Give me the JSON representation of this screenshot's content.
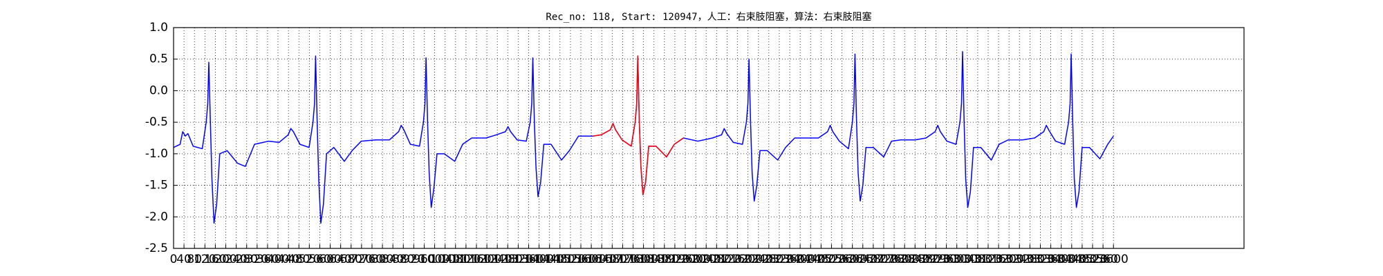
{
  "chart_data": {
    "type": "line",
    "title": "Rec_no: 118, Start: 120947，人工：右束肢阻塞，算法：右束肢阻塞",
    "xlim": [
      0,
      4100
    ],
    "ylim": [
      -2.5,
      1.0
    ],
    "yticks": [
      {
        "value": 1.0,
        "label": "1.0"
      },
      0.5,
      {
        "value": 0.0,
        "label": "0.0"
      },
      -0.5,
      {
        "value": -1.0,
        "label": "-1.0"
      },
      -1.5,
      {
        "value": -2.0,
        "label": "-2.0"
      },
      -2.5
    ],
    "xticks": [
      0,
      40,
      80,
      120,
      160,
      200,
      240,
      280,
      320,
      360,
      400,
      440,
      480,
      520,
      560,
      600,
      640,
      680,
      720,
      760,
      800,
      840,
      880,
      920,
      960,
      1000,
      1040,
      1080,
      1120,
      1160,
      1200,
      1240,
      1280,
      1320,
      1360,
      1400,
      1440,
      1480,
      1520,
      1560,
      1600,
      1640,
      1680,
      1720,
      1760,
      1800,
      1840,
      1880,
      1920,
      1960,
      2000,
      2040,
      2080,
      2120,
      2160,
      2200,
      2240,
      2280,
      2320,
      2360,
      2400,
      2440,
      2480,
      2520,
      2560,
      2600,
      2640,
      2680,
      2720,
      2760,
      2800,
      2840,
      2880,
      2920,
      2960,
      3000,
      3040,
      3080,
      3120,
      3160,
      3200,
      3240,
      3280,
      3320,
      3360,
      3400,
      3440,
      3480,
      3520,
      3560,
      3600
    ],
    "grid": true,
    "series": [
      {
        "color": "#0000ff",
        "x": [
          0,
          25,
          35,
          45,
          55,
          75,
          110,
          125,
          131,
          135,
          141,
          147,
          155,
          165,
          177,
          205,
          245,
          275,
          310,
          365,
          404,
          439,
          449,
          459,
          484,
          519,
          534,
          540,
          544,
          550,
          556,
          564,
          574,
          586,
          614,
          654,
          684,
          719,
          774,
          827,
          862,
          872,
          882,
          907,
          942,
          957,
          963,
          967,
          973,
          979,
          987,
          997,
          1009,
          1037,
          1077,
          1107,
          1142,
          1197,
          1236,
          1271,
          1281,
          1291,
          1316,
          1351,
          1366,
          1372,
          1376,
          1382,
          1388,
          1396,
          1406,
          1418,
          1446,
          1486,
          1516,
          1551,
          1606,
          1638,
          1673,
          1683,
          1693,
          1718,
          1753,
          1768,
          1774,
          1778,
          1784,
          1790,
          1798,
          1808,
          1820,
          1848,
          1888,
          1918,
          1953,
          2008,
          2064,
          2099,
          2109,
          2119,
          2144,
          2179,
          2194,
          2200,
          2204,
          2210,
          2216,
          2224,
          2234,
          2246,
          2274,
          2314,
          2344,
          2379,
          2434,
          2470,
          2505,
          2515,
          2525,
          2550,
          2585,
          2600,
          2606,
          2610,
          2616,
          2622,
          2630,
          2640,
          2652,
          2680,
          2720,
          2750,
          2785,
          2840,
          2882,
          2917,
          2927,
          2937,
          2962,
          2997,
          3012,
          3018,
          3022,
          3028,
          3034,
          3042,
          3052,
          3064,
          3092,
          3132,
          3162,
          3197,
          3252,
          3298,
          3333,
          3343,
          3353,
          3378,
          3413,
          3428,
          3434,
          3438,
          3444,
          3450,
          3458,
          3468,
          3480,
          3508,
          3548,
          3578,
          3600
        ],
        "values": [
          -0.9,
          -0.85,
          -0.65,
          -0.72,
          -0.68,
          -0.88,
          -0.92,
          -0.5,
          -0.2,
          0.45,
          -0.5,
          -1.4,
          -2.1,
          -1.8,
          -1.0,
          -0.95,
          -1.15,
          -1.2,
          -0.85,
          -0.8,
          -0.82,
          -0.7,
          -0.6,
          -0.65,
          -0.85,
          -0.9,
          -0.5,
          -0.2,
          0.55,
          -0.5,
          -1.4,
          -2.1,
          -1.8,
          -1.0,
          -0.9,
          -1.12,
          -0.95,
          -0.8,
          -0.78,
          -0.78,
          -0.65,
          -0.55,
          -0.62,
          -0.85,
          -0.88,
          -0.5,
          -0.2,
          0.52,
          -0.5,
          -1.3,
          -1.85,
          -1.55,
          -1.0,
          -1.0,
          -1.12,
          -0.85,
          -0.75,
          -0.75,
          -0.7,
          -0.65,
          -0.57,
          -0.65,
          -0.78,
          -0.8,
          -0.5,
          -0.2,
          0.52,
          -0.5,
          -1.2,
          -1.68,
          -1.45,
          -0.85,
          -0.85,
          -1.1,
          -0.95,
          -0.72,
          -0.72,
          -0.7,
          -0.62,
          -0.52,
          -0.62,
          -0.78,
          -0.88,
          -0.5,
          -0.2,
          0.55,
          -0.5,
          -1.2,
          -1.65,
          -1.45,
          -0.88,
          -0.88,
          -1.05,
          -0.85,
          -0.75,
          -0.8,
          -0.75,
          -0.7,
          -0.6,
          -0.68,
          -0.82,
          -0.85,
          -0.5,
          -0.2,
          0.5,
          -0.5,
          -1.3,
          -1.75,
          -1.5,
          -0.95,
          -0.95,
          -1.1,
          -0.9,
          -0.75,
          -0.75,
          -0.75,
          -0.65,
          -0.55,
          -0.65,
          -0.8,
          -0.92,
          -0.5,
          -0.2,
          0.58,
          -0.5,
          -1.3,
          -1.75,
          -1.5,
          -0.9,
          -0.9,
          -1.05,
          -0.8,
          -0.78,
          -0.78,
          -0.75,
          -0.65,
          -0.55,
          -0.65,
          -0.8,
          -0.85,
          -0.5,
          -0.2,
          0.62,
          -0.5,
          -1.4,
          -1.85,
          -1.6,
          -0.9,
          -0.9,
          -1.1,
          -0.85,
          -0.78,
          -0.78,
          -0.75,
          -0.65,
          -0.55,
          -0.63,
          -0.8,
          -0.85,
          -0.5,
          -0.2,
          0.58,
          -0.5,
          -1.4,
          -1.85,
          -1.6,
          -0.9,
          -0.9,
          -1.08,
          -0.85,
          -0.72
        ]
      },
      {
        "color": "#ff0000",
        "x": [
          1606,
          1638,
          1673,
          1683,
          1693,
          1718,
          1753,
          1768,
          1774,
          1778,
          1784,
          1790,
          1798,
          1808,
          1820,
          1848,
          1888,
          1918,
          1953
        ],
        "values": [
          -0.72,
          -0.7,
          -0.62,
          -0.52,
          -0.62,
          -0.78,
          -0.88,
          -0.5,
          -0.2,
          0.55,
          -0.5,
          -1.2,
          -1.65,
          -1.45,
          -0.88,
          -0.88,
          -1.05,
          -0.85,
          -0.75
        ]
      }
    ]
  }
}
